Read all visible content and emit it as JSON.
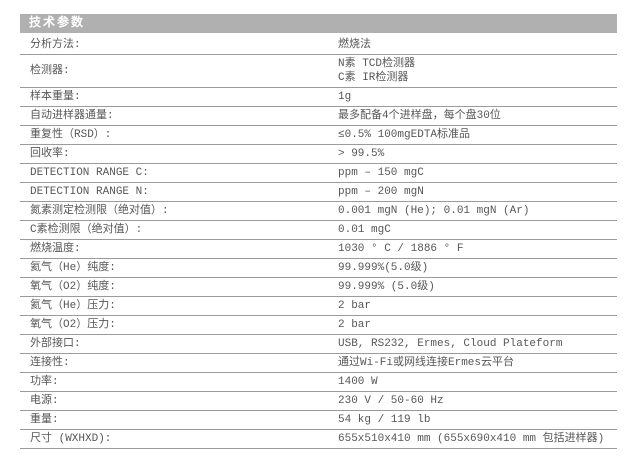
{
  "header": {
    "title": "技术参数"
  },
  "colors": {
    "header_background": "#b0b0b0",
    "header_text": "#ffffff",
    "row_border": "#9b9b9b",
    "body_text": "#575757",
    "page_background": "#ffffff"
  },
  "table": {
    "rows": [
      {
        "label": "分析方法:",
        "value": "燃烧法"
      },
      {
        "label": "检测器:",
        "value": "N素  TCD检测器\nC素  IR检测器"
      },
      {
        "label": "样本重量:",
        "value": "1g"
      },
      {
        "label": "自动进样器通量:",
        "value": "最多配备4个进样盘，每个盘30位"
      },
      {
        "label": "重复性（RSD）:",
        "value": "≤0.5% 100mgEDTA标准品"
      },
      {
        "label": "回收率:",
        "value": "> 99.5%"
      },
      {
        "label": "DETECTION RANGE C:",
        "value": "ppm – 150 mgC"
      },
      {
        "label": "DETECTION RANGE N:",
        "value": "ppm – 200 mgN"
      },
      {
        "label": "氮素测定检测限（绝对值）:",
        "value": "0.001 mgN (He); 0.01 mgN (Ar)"
      },
      {
        "label": "C素检测限（绝对值）:",
        "value": "0.01 mgC"
      },
      {
        "label": "燃烧温度:",
        "value": "1030 ° C / 1886 ° F"
      },
      {
        "label": "氦气（He）纯度:",
        "value": "99.999%(5.0级)"
      },
      {
        "label": "氧气（O2）纯度:",
        "value": "99.999% (5.0级)"
      },
      {
        "label": "氦气（He）压力:",
        "value": "2 bar"
      },
      {
        "label": "氧气（O2）压力:",
        "value": "2 bar"
      },
      {
        "label": "外部接口:",
        "value": "USB, RS232, Ermes, Cloud Plateform"
      },
      {
        "label": "连接性:",
        "value": "通过Wi-Fi或网线连接Ermes云平台"
      },
      {
        "label": "功率:",
        "value": "1400 W"
      },
      {
        "label": "电源:",
        "value": "230 V / 50-60 Hz"
      },
      {
        "label": "重量:",
        "value": "54 kg / 119 lb"
      },
      {
        "label": "尺寸 (WXHXD):",
        "value": "655x510x410 mm  (655x690x410 mm 包括进样器)"
      }
    ]
  }
}
